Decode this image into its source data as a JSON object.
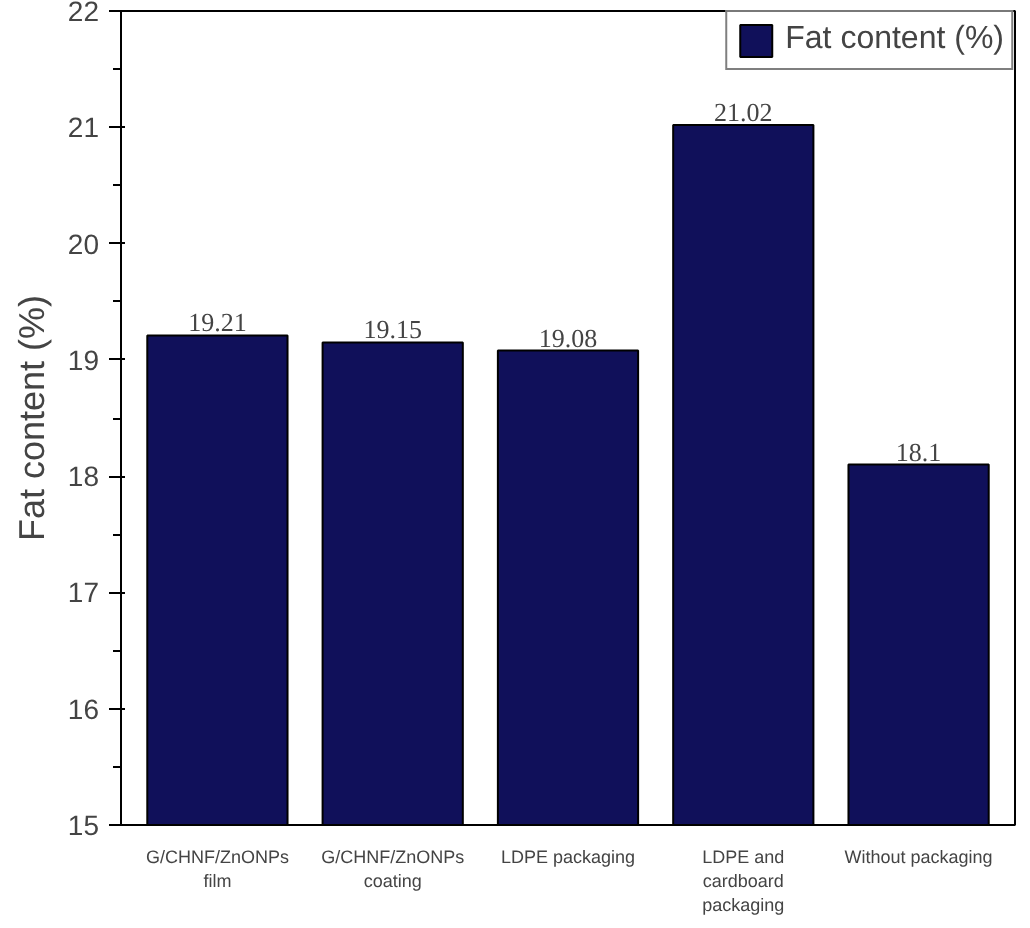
{
  "chart_data": {
    "type": "bar",
    "ylabel": "Fat content (%)",
    "categories": [
      "G/CHNF/ZnONPs film",
      "G/CHNF/ZnONPs coating",
      "LDPE packaging",
      "LDPE and cardboard packaging",
      "Without packaging"
    ],
    "series": [
      {
        "name": "Fat content (%)",
        "color": "#10105a",
        "values": [
          19.21,
          19.15,
          19.08,
          21.02,
          18.1
        ]
      }
    ],
    "ylim": [
      15,
      22
    ],
    "yticks": [
      15,
      16,
      17,
      18,
      19,
      20,
      21,
      22
    ],
    "data_labels": true,
    "grid": false,
    "legend": "top right"
  }
}
